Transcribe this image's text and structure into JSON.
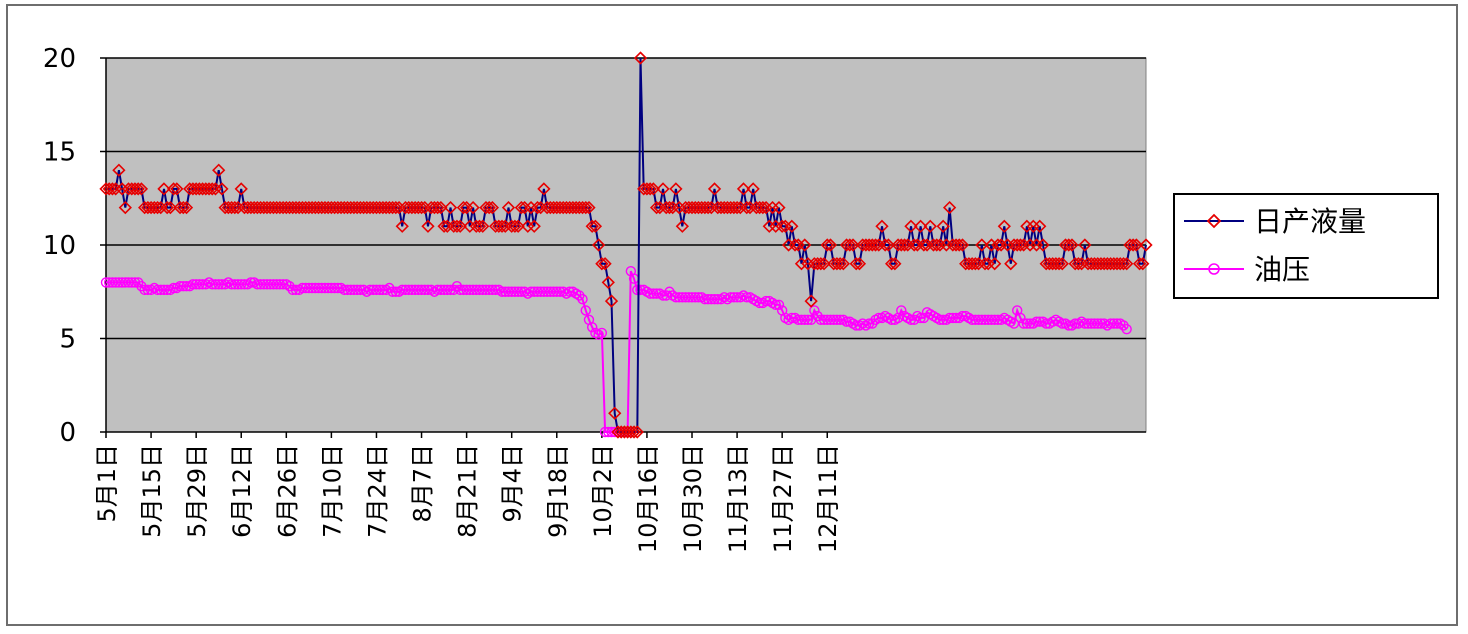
{
  "chart_data": {
    "type": "line",
    "title": "",
    "xlabel": "",
    "ylabel": "",
    "ylim": [
      0,
      20
    ],
    "yticks": [
      "0",
      "5",
      "10",
      "15",
      "20"
    ],
    "grid": true,
    "legend_position": "right",
    "xtick_labels": [
      "5月1日",
      "5月15日",
      "5月29日",
      "6月12日",
      "6月26日",
      "7月10日",
      "7月24日",
      "8月7日",
      "8月21日",
      "9月4日",
      "9月18日",
      "10月2日",
      "10月16日",
      "10月30日",
      "11月13日",
      "11月27日",
      "12月11日"
    ],
    "x_start": "5月1日",
    "series": [
      {
        "name": "日产液量",
        "color": "#000080",
        "marker_color": "#e60000",
        "values": [
          13,
          13,
          13,
          13,
          14,
          13,
          12,
          13,
          13,
          13,
          13,
          13,
          12,
          12,
          12,
          12,
          12,
          12,
          13,
          12,
          12,
          13,
          13,
          12,
          12,
          12,
          13,
          13,
          13,
          13,
          13,
          13,
          13,
          13,
          13,
          14,
          13,
          12,
          12,
          12,
          12,
          12,
          13,
          12,
          12,
          12,
          12,
          12,
          12,
          12,
          12,
          12,
          12,
          12,
          12,
          12,
          12,
          12,
          12,
          12,
          12,
          12,
          12,
          12,
          12,
          12,
          12,
          12,
          12,
          12,
          12,
          12,
          12,
          12,
          12,
          12,
          12,
          12,
          12,
          12,
          12,
          12,
          12,
          12,
          12,
          12,
          12,
          12,
          12,
          12,
          12,
          12,
          11,
          12,
          12,
          12,
          12,
          12,
          12,
          12,
          11,
          12,
          12,
          12,
          12,
          11,
          11,
          12,
          11,
          11,
          11,
          12,
          12,
          11,
          12,
          11,
          11,
          11,
          12,
          12,
          12,
          11,
          11,
          11,
          11,
          12,
          11,
          11,
          11,
          12,
          12,
          11,
          12,
          11,
          12,
          12,
          13,
          12,
          12,
          12,
          12,
          12,
          12,
          12,
          12,
          12,
          12,
          12,
          12,
          12,
          12,
          11,
          11,
          10,
          9,
          9,
          8,
          7,
          1,
          0,
          0,
          0,
          0,
          0,
          0,
          0,
          20,
          13,
          13,
          13,
          13,
          12,
          12,
          13,
          12,
          12,
          12,
          13,
          12,
          11,
          12,
          12,
          12,
          12,
          12,
          12,
          12,
          12,
          12,
          13,
          12,
          12,
          12,
          12,
          12,
          12,
          12,
          12,
          13,
          12,
          12,
          13,
          12,
          12,
          12,
          12,
          11,
          12,
          11,
          12,
          11,
          11,
          10,
          11,
          10,
          10,
          9,
          10,
          9,
          7,
          9,
          9,
          9,
          9,
          10,
          10,
          9,
          9,
          9,
          9,
          10,
          10,
          10,
          9,
          9,
          10,
          10,
          10,
          10,
          10,
          10,
          11,
          10,
          10,
          9,
          9,
          10,
          10,
          10,
          10,
          11,
          10,
          10,
          11,
          10,
          10,
          11,
          10,
          10,
          10,
          11,
          10,
          12,
          10,
          10,
          10,
          10,
          9,
          9,
          9,
          9,
          9,
          10,
          9,
          9,
          10,
          9,
          10,
          10,
          11,
          10,
          9,
          10,
          10,
          10,
          10,
          11,
          10,
          11,
          10,
          11,
          10,
          9,
          9,
          9,
          9,
          9,
          9,
          10,
          10,
          10,
          9,
          9,
          9,
          10,
          9,
          9,
          9,
          9,
          9,
          9,
          9,
          9,
          9,
          9,
          9,
          9,
          9,
          10,
          10,
          10,
          9,
          9,
          10
        ]
      },
      {
        "name": "油压",
        "color": "#ff00ff",
        "marker_color": "#ff00ff",
        "values": [
          8,
          8,
          8,
          8,
          8,
          8,
          8,
          8,
          8,
          8,
          8,
          7.8,
          7.6,
          7.6,
          7.6,
          7.7,
          7.6,
          7.6,
          7.6,
          7.6,
          7.6,
          7.7,
          7.7,
          7.8,
          7.8,
          7.8,
          7.8,
          7.9,
          7.9,
          7.9,
          7.9,
          7.9,
          8,
          7.9,
          7.9,
          7.9,
          7.9,
          7.9,
          8,
          7.9,
          7.9,
          7.9,
          7.9,
          7.9,
          7.9,
          8,
          8,
          7.9,
          7.9,
          7.9,
          7.9,
          7.9,
          7.9,
          7.9,
          7.9,
          7.9,
          7.9,
          7.8,
          7.6,
          7.6,
          7.6,
          7.7,
          7.7,
          7.7,
          7.7,
          7.7,
          7.7,
          7.7,
          7.7,
          7.7,
          7.7,
          7.7,
          7.7,
          7.7,
          7.6,
          7.6,
          7.6,
          7.6,
          7.6,
          7.6,
          7.6,
          7.5,
          7.6,
          7.6,
          7.6,
          7.6,
          7.6,
          7.6,
          7.7,
          7.5,
          7.5,
          7.5,
          7.6,
          7.6,
          7.6,
          7.6,
          7.6,
          7.6,
          7.6,
          7.6,
          7.6,
          7.6,
          7.5,
          7.6,
          7.6,
          7.6,
          7.6,
          7.6,
          7.6,
          7.8,
          7.6,
          7.6,
          7.6,
          7.6,
          7.6,
          7.6,
          7.6,
          7.6,
          7.6,
          7.6,
          7.6,
          7.6,
          7.6,
          7.5,
          7.5,
          7.5,
          7.5,
          7.5,
          7.5,
          7.5,
          7.5,
          7.4,
          7.5,
          7.5,
          7.5,
          7.5,
          7.5,
          7.5,
          7.5,
          7.5,
          7.5,
          7.5,
          7.5,
          7.4,
          7.5,
          7.5,
          7.4,
          7.3,
          7.1,
          6.5,
          6,
          5.6,
          5.3,
          5.2,
          5.3,
          0,
          0,
          0,
          0,
          0,
          0,
          0,
          0,
          8.6,
          8.2,
          7.6,
          7.6,
          7.6,
          7.5,
          7.4,
          7.4,
          7.4,
          7.4,
          7.3,
          7.3,
          7.5,
          7.3,
          7.2,
          7.2,
          7.2,
          7.2,
          7.2,
          7.2,
          7.2,
          7.2,
          7.2,
          7.1,
          7.1,
          7.1,
          7.1,
          7.1,
          7.1,
          7.2,
          7.1,
          7.2,
          7.2,
          7.2,
          7.2,
          7.3,
          7.2,
          7.2,
          7.1,
          7,
          6.9,
          6.9,
          7,
          7,
          6.9,
          6.8,
          6.8,
          6.5,
          6.1,
          6,
          6.1,
          6.1,
          6,
          6,
          6,
          6,
          6,
          6.5,
          6.2,
          6,
          6,
          6,
          6,
          6,
          6,
          6,
          6,
          5.9,
          5.9,
          5.8,
          5.7,
          5.7,
          5.8,
          5.7,
          5.8,
          5.8,
          6,
          6.1,
          6.1,
          6.2,
          6.1,
          6,
          6,
          6.1,
          6.5,
          6.2,
          6.1,
          6,
          6,
          6.2,
          6.1,
          6.1,
          6.4,
          6.3,
          6.2,
          6.1,
          6,
          6,
          6,
          6.1,
          6.1,
          6.1,
          6.1,
          6.2,
          6.2,
          6.1,
          6,
          6,
          6,
          6,
          6,
          6,
          6,
          6,
          6,
          6,
          6.1,
          6,
          5.9,
          5.8,
          6.5,
          6.1,
          5.8,
          5.8,
          5.8,
          5.8,
          5.9,
          5.9,
          5.9,
          5.8,
          5.8,
          5.9,
          6,
          5.9,
          5.8,
          5.8,
          5.7,
          5.7,
          5.8,
          5.8,
          5.9,
          5.8,
          5.8,
          5.8,
          5.8,
          5.8,
          5.8,
          5.8,
          5.7,
          5.8,
          5.8,
          5.8,
          5.8,
          5.7,
          5.5
        ]
      }
    ]
  }
}
